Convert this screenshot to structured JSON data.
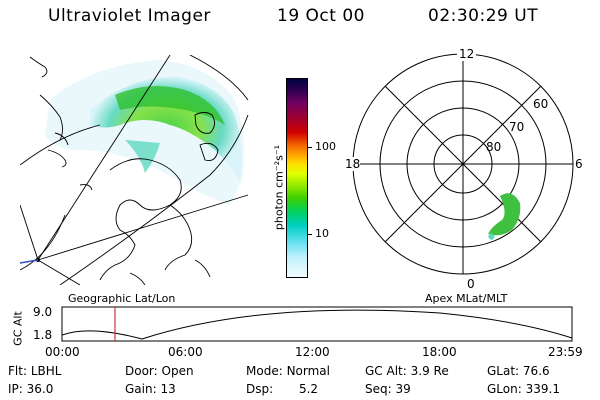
{
  "header": {
    "instrument": "Ultraviolet Imager",
    "date": "19 Oct 00",
    "time": "02:30:29 UT"
  },
  "colorbar": {
    "unit_label": "photon cm⁻²s⁻¹",
    "ticks": [
      "100",
      "10"
    ],
    "colors": [
      "#000040",
      "#300050",
      "#600060",
      "#900040",
      "#c00000",
      "#e04000",
      "#ff8000",
      "#ffc000",
      "#ffff00",
      "#c0ff00",
      "#60e000",
      "#00d000",
      "#00d080",
      "#00d0d0",
      "#80e0f0",
      "#e0f8ff"
    ]
  },
  "geo_panel": {
    "label": "Geographic Lat/Lon"
  },
  "polar_panel": {
    "label": "Apex MLat/MLT",
    "mlt_labels": {
      "top": "12",
      "left": "18",
      "right": "6",
      "bottom": "0"
    },
    "lat_labels": [
      "60",
      "70",
      "80"
    ]
  },
  "alt_plot": {
    "ylabel": "GC Alt",
    "yticks": [
      "9.0",
      "1.8"
    ],
    "xticks": [
      "00:00",
      "06:00",
      "12:00",
      "18:00",
      "23:59"
    ],
    "marker_color": "#d03030"
  },
  "status": {
    "row1": [
      {
        "label": "Flt:",
        "value": "LBHL"
      },
      {
        "label": "Door:",
        "value": "Open"
      },
      {
        "label": "Mode:",
        "value": "Normal"
      },
      {
        "label": "GC Alt:",
        "value": "3.9 Re"
      },
      {
        "label": "GLat:",
        "value": "76.6"
      }
    ],
    "row2": [
      {
        "label": "IP:",
        "value": "36.0"
      },
      {
        "label": "Gain:",
        "value": "13"
      },
      {
        "label": "Dsp:",
        "value": "5.2"
      },
      {
        "label": "Seq:",
        "value": "39"
      },
      {
        "label": "GLon:",
        "value": "339.1"
      }
    ]
  }
}
